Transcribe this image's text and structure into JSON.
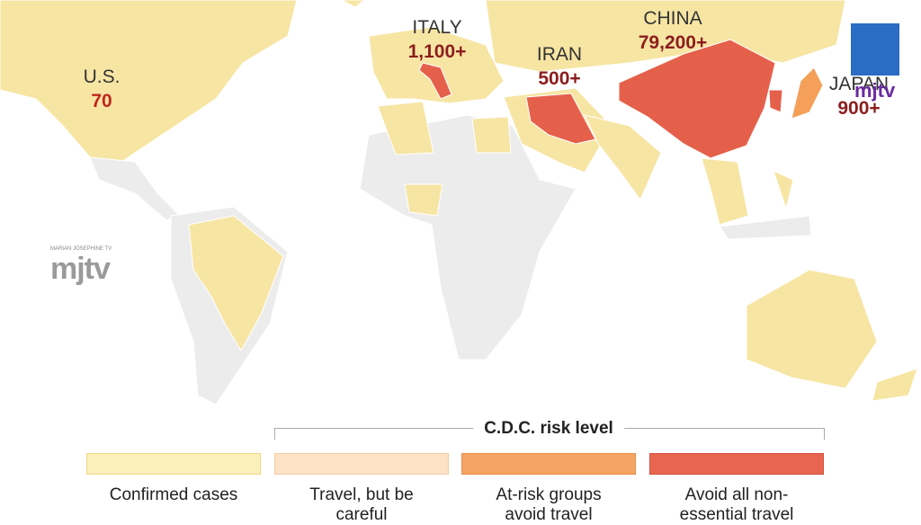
{
  "labels": [
    {
      "country": "U.S.",
      "count": "70"
    },
    {
      "country": "ITALY",
      "count": "1,100+"
    },
    {
      "country": "IRAN",
      "count": "500+"
    },
    {
      "country": "CHINA",
      "count": "79,200+"
    },
    {
      "country": "JAPAN",
      "count": "900+"
    }
  ],
  "legend": {
    "title": "C.D.C. risk level",
    "items": [
      "Confirmed cases",
      "Travel, but be careful",
      "At-risk groups avoid travel",
      "Avoid all non-essential travel"
    ]
  },
  "watermark": {
    "caption": "MARIAN JOSEPHINE TV",
    "logo": "mjtv"
  }
}
